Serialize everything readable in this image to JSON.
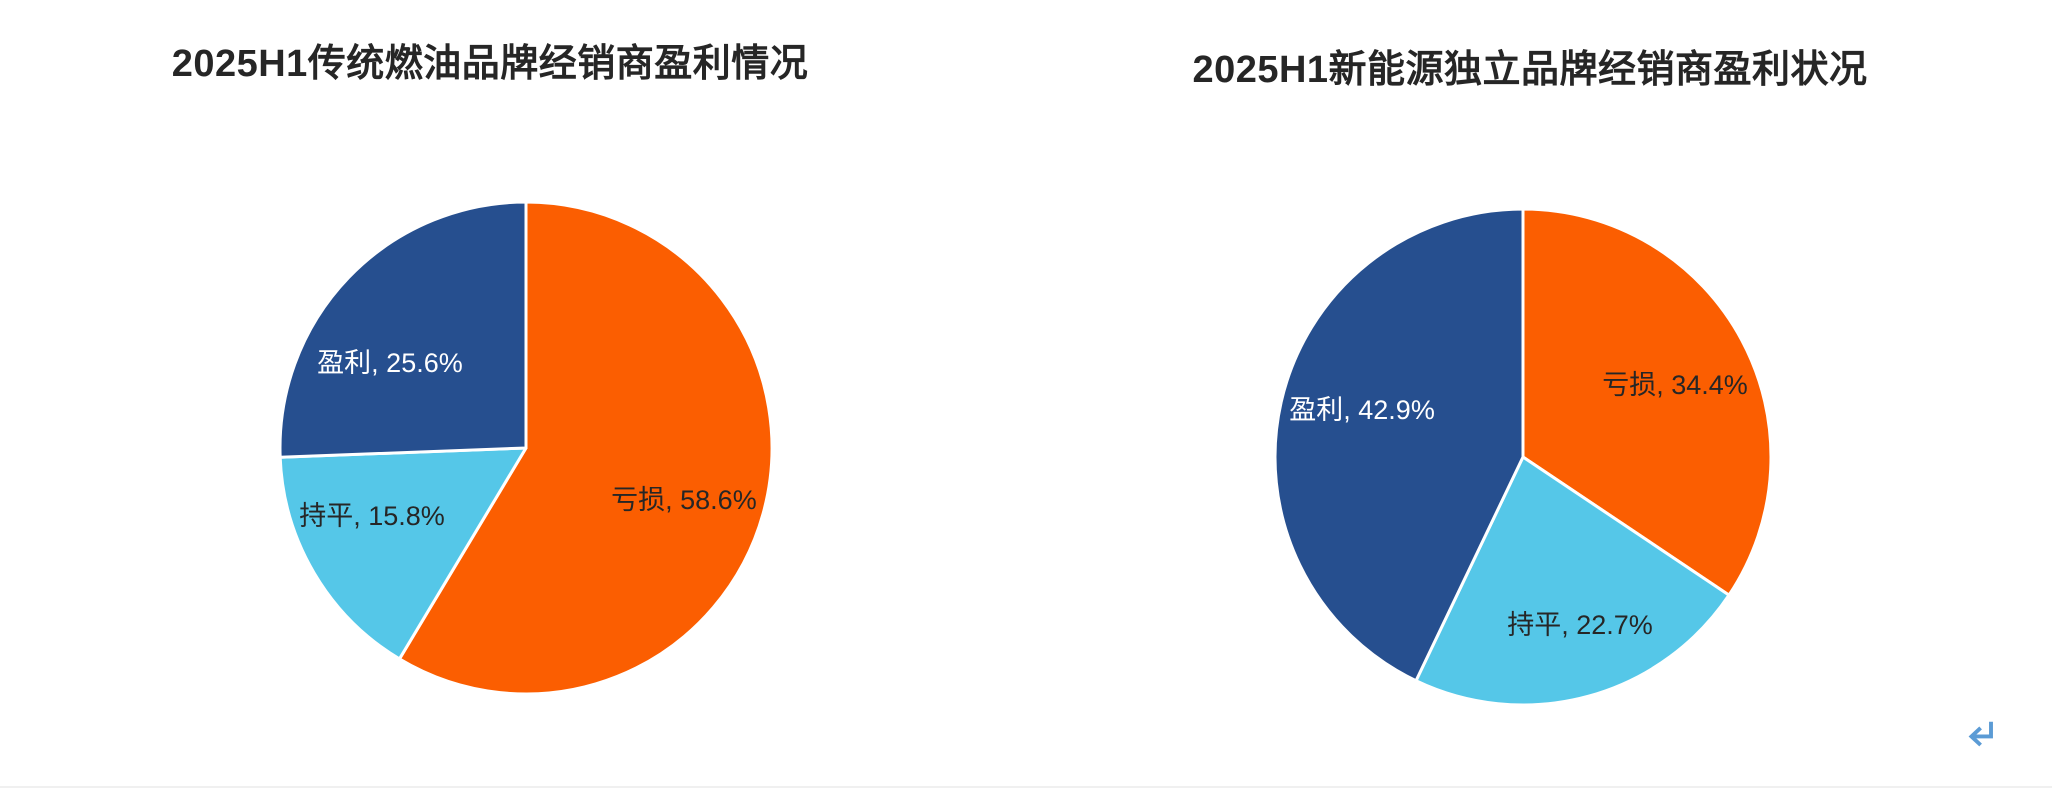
{
  "page": {
    "background": "#FFFFFF",
    "enter_mark": {
      "symbol": "↵",
      "color": "#5B9BD5"
    }
  },
  "chart_data": [
    {
      "type": "pie",
      "title": "2025H1传统燃油品牌经销商盈利情况",
      "categories": [
        "亏损",
        "持平",
        "盈利"
      ],
      "values": [
        58.6,
        15.8,
        25.6
      ],
      "unit": "%",
      "label_format": "{category}, {value}%",
      "labels_rendered": [
        "亏损, 58.6%",
        "持平, 15.8%",
        "盈利, 25.6%"
      ],
      "colors": [
        "#FB5E01",
        "#55C7E8",
        "#264F8F"
      ],
      "label_colors": [
        "#262626",
        "#262626",
        "#FFFFFF"
      ],
      "label_positions": [
        [
          0.642,
          0.211
        ],
        [
          -0.626,
          0.276
        ],
        [
          -0.553,
          -0.346
        ]
      ],
      "start_angle_deg": 0,
      "direction": "clockwise",
      "slice_border_color": "#FFFFFF",
      "legend": "none"
    },
    {
      "type": "pie",
      "title": "2025H1新能源独立品牌经销商盈利状况",
      "categories": [
        "亏损",
        "持平",
        "盈利"
      ],
      "values": [
        34.4,
        22.7,
        42.9
      ],
      "unit": "%",
      "label_format": "{category}, {value}%",
      "labels_rendered": [
        "亏损, 34.4%",
        "持平, 22.7%",
        "盈利, 42.9%"
      ],
      "colors": [
        "#FB5E01",
        "#55C7E8",
        "#264F8F"
      ],
      "label_colors": [
        "#262626",
        "#262626",
        "#FFFFFF"
      ],
      "label_positions": [
        [
          0.613,
          -0.29
        ],
        [
          0.23,
          0.677
        ],
        [
          -0.649,
          -0.19
        ]
      ],
      "start_angle_deg": 0,
      "direction": "clockwise",
      "slice_border_color": "#FFFFFF",
      "legend": "none"
    }
  ]
}
